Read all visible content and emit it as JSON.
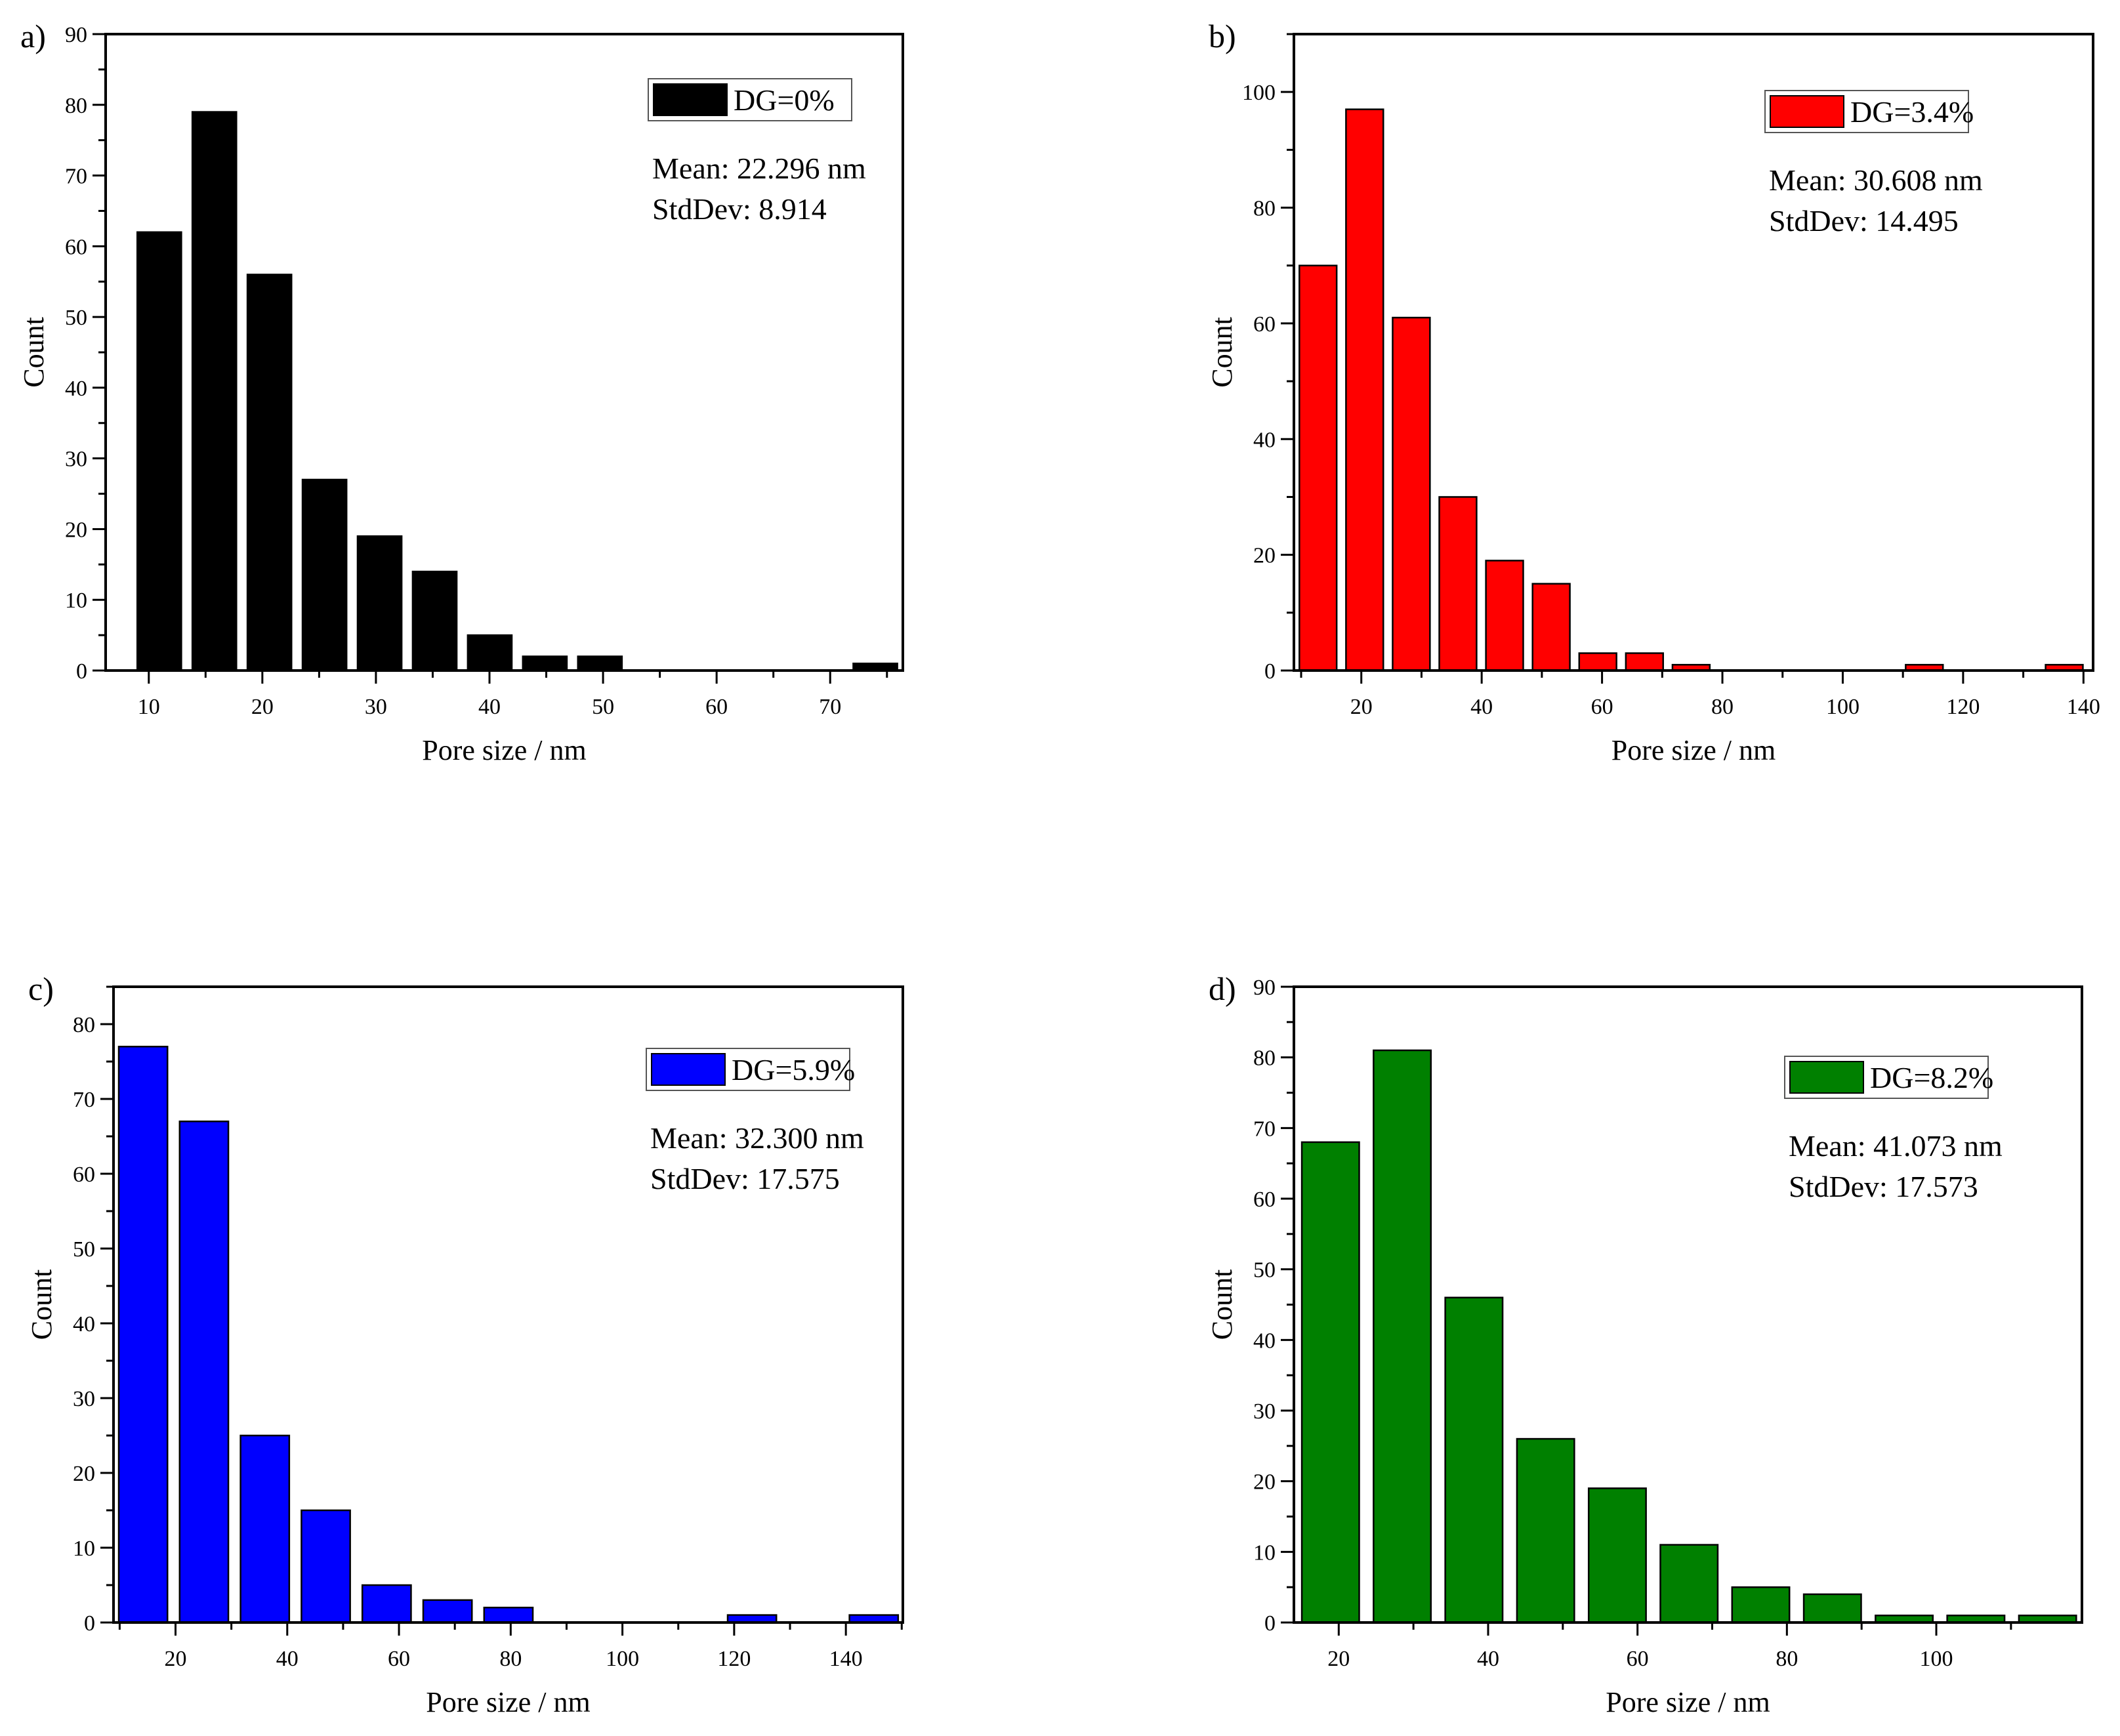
{
  "chart_data": [
    {
      "type": "bar",
      "panel_label": "a)",
      "xlabel": "Pore size / nm",
      "ylabel": "Count",
      "xlim": [
        6.2,
        76.4
      ],
      "ylim": [
        0,
        90
      ],
      "x_ticks": [
        10,
        20,
        30,
        40,
        50,
        60,
        70
      ],
      "x_minor_step": 5,
      "y_ticks": [
        0,
        10,
        20,
        30,
        40,
        50,
        60,
        70,
        80,
        90
      ],
      "y_minor_step": 5,
      "bin_start": 8.5,
      "bin_width": 4.85,
      "values": [
        62,
        79,
        56,
        27,
        19,
        14,
        5,
        2,
        2,
        0,
        0,
        0,
        0,
        1
      ],
      "color": "#000000",
      "legend": "DG=0%",
      "mean": "Mean: 22.296 nm",
      "stddev": "StdDev: 8.914"
    },
    {
      "type": "bar",
      "panel_label": "b)",
      "xlabel": "Pore size / nm",
      "ylabel": "Count",
      "xlim": [
        8.8,
        141.6
      ],
      "ylim": [
        0,
        110
      ],
      "x_ticks": [
        20,
        40,
        60,
        80,
        100,
        120,
        140
      ],
      "x_minor_step": 10,
      "y_ticks": [
        0,
        20,
        40,
        60,
        80,
        100
      ],
      "y_minor_step": 10,
      "bin_start": 8.93,
      "bin_width": 7.75,
      "values": [
        70,
        97,
        61,
        30,
        19,
        15,
        3,
        3,
        1,
        0,
        0,
        0,
        0,
        1,
        0,
        0,
        1
      ],
      "color": "#ff0000",
      "legend": "DG=3.4%",
      "mean": "Mean: 30.608 nm",
      "stddev": "StdDev: 14.495"
    },
    {
      "type": "bar",
      "panel_label": "c)",
      "xlabel": "Pore size / nm",
      "ylabel": "Count",
      "xlim": [
        8.9,
        150.2
      ],
      "ylim": [
        0,
        85
      ],
      "x_ticks": [
        20,
        40,
        60,
        80,
        100,
        120,
        140
      ],
      "x_minor_step": 10,
      "y_ticks": [
        0,
        10,
        20,
        30,
        40,
        50,
        60,
        70,
        80
      ],
      "y_minor_step": 5,
      "bin_start": 8.75,
      "bin_width": 10.9,
      "values": [
        77,
        67,
        25,
        15,
        5,
        3,
        2,
        0,
        0,
        0,
        1,
        0,
        1
      ],
      "color": "#0000ff",
      "legend": "DG=5.9%",
      "mean": "Mean: 32.300 nm",
      "stddev": "StdDev: 17.575"
    },
    {
      "type": "bar",
      "panel_label": "d)",
      "xlabel": "Pore size / nm",
      "ylabel": "Count",
      "xlim": [
        14.0,
        119.5
      ],
      "ylim": [
        0,
        90
      ],
      "x_ticks": [
        20,
        40,
        60,
        80,
        100
      ],
      "x_minor_step": 10,
      "y_ticks": [
        0,
        10,
        20,
        30,
        40,
        50,
        60,
        70,
        80,
        90
      ],
      "y_minor_step": 5,
      "bin_start": 14.1,
      "bin_width": 9.6,
      "values": [
        68,
        81,
        46,
        26,
        19,
        11,
        5,
        4,
        1,
        1,
        1
      ],
      "color": "#008000",
      "legend": "DG=8.2%",
      "mean": "Mean: 41.073 nm",
      "stddev": "StdDev: 17.573"
    }
  ]
}
